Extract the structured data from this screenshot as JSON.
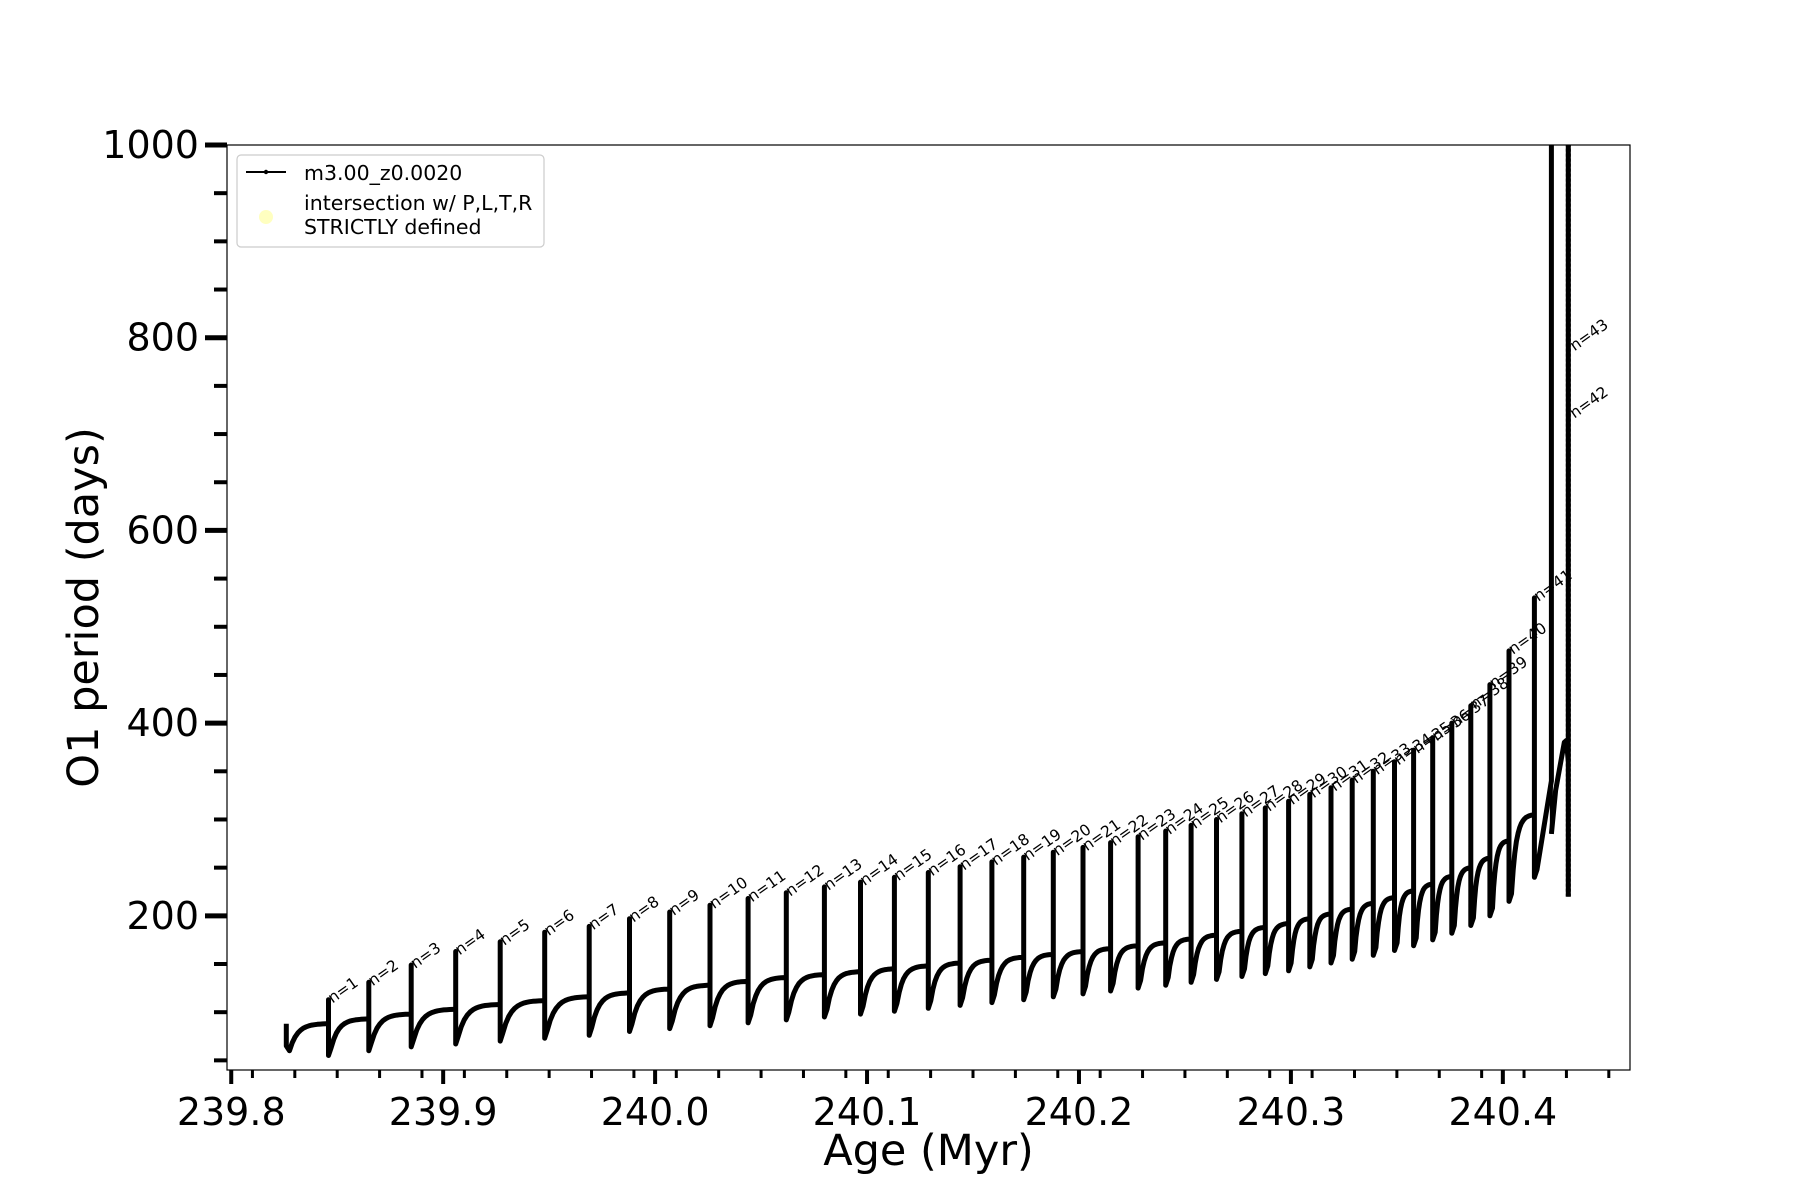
{
  "chart_data": {
    "type": "line",
    "title": "",
    "xlabel": "Age (Myr)",
    "ylabel": "O1 period (days)",
    "xlim": [
      239.798,
      240.46
    ],
    "ylim": [
      40,
      1000
    ],
    "xticks": [
      239.8,
      239.9,
      240.0,
      240.1,
      240.2,
      240.3,
      240.4
    ],
    "xtick_labels": [
      "239.8",
      "239.9",
      "240.0",
      "240.1",
      "240.2",
      "240.3",
      "240.4"
    ],
    "yticks": [
      200,
      400,
      600,
      800,
      1000
    ],
    "ytick_labels": [
      "200",
      "400",
      "600",
      "800",
      "1000"
    ],
    "grid": false,
    "legend_position": "top-left",
    "legend": [
      {
        "label": "m3.00_z0.0020",
        "marker": "line-with-dots",
        "color": "#000000"
      },
      {
        "label": "intersection w/ P,L,T,R\nSTRICTLY defined",
        "marker": "circle",
        "color": "#ffffc0"
      }
    ],
    "series": [
      {
        "name": "m3.00_z0.0020",
        "color": "#000000",
        "start": {
          "x": 239.826,
          "y_base": 65,
          "y_spike": 88
        },
        "pulses": [
          {
            "n": 1,
            "x": 239.8459,
            "y_peak": 113,
            "y_dip": 55,
            "y_pre": 88
          },
          {
            "n": 2,
            "x": 239.8649,
            "y_peak": 131,
            "y_dip": 60,
            "y_pre": 93
          },
          {
            "n": 3,
            "x": 239.8849,
            "y_peak": 149,
            "y_dip": 64,
            "y_pre": 98
          },
          {
            "n": 4,
            "x": 239.9059,
            "y_peak": 163,
            "y_dip": 67,
            "y_pre": 103
          },
          {
            "n": 5,
            "x": 239.9269,
            "y_peak": 173,
            "y_dip": 70,
            "y_pre": 108
          },
          {
            "n": 6,
            "x": 239.9479,
            "y_peak": 183,
            "y_dip": 73,
            "y_pre": 112
          },
          {
            "n": 7,
            "x": 239.9689,
            "y_peak": 189,
            "y_dip": 76,
            "y_pre": 116
          },
          {
            "n": 8,
            "x": 239.9879,
            "y_peak": 197,
            "y_dip": 80,
            "y_pre": 120
          },
          {
            "n": 9,
            "x": 240.0069,
            "y_peak": 204,
            "y_dip": 83,
            "y_pre": 124
          },
          {
            "n": 10,
            "x": 240.0259,
            "y_peak": 211,
            "y_dip": 86,
            "y_pre": 128
          },
          {
            "n": 11,
            "x": 240.0439,
            "y_peak": 218,
            "y_dip": 89,
            "y_pre": 132
          },
          {
            "n": 12,
            "x": 240.0619,
            "y_peak": 224,
            "y_dip": 92,
            "y_pre": 136
          },
          {
            "n": 13,
            "x": 240.0799,
            "y_peak": 230,
            "y_dip": 95,
            "y_pre": 139
          },
          {
            "n": 14,
            "x": 240.0969,
            "y_peak": 235,
            "y_dip": 98,
            "y_pre": 142
          },
          {
            "n": 15,
            "x": 240.1129,
            "y_peak": 240,
            "y_dip": 101,
            "y_pre": 145
          },
          {
            "n": 16,
            "x": 240.1289,
            "y_peak": 245,
            "y_dip": 104,
            "y_pre": 148
          },
          {
            "n": 17,
            "x": 240.1439,
            "y_peak": 251,
            "y_dip": 107,
            "y_pre": 151
          },
          {
            "n": 18,
            "x": 240.1589,
            "y_peak": 256,
            "y_dip": 110,
            "y_pre": 154
          },
          {
            "n": 19,
            "x": 240.1739,
            "y_peak": 261,
            "y_dip": 113,
            "y_pre": 157
          },
          {
            "n": 20,
            "x": 240.1879,
            "y_peak": 266,
            "y_dip": 116,
            "y_pre": 160
          },
          {
            "n": 21,
            "x": 240.2019,
            "y_peak": 271,
            "y_dip": 119,
            "y_pre": 163
          },
          {
            "n": 22,
            "x": 240.2149,
            "y_peak": 276,
            "y_dip": 122,
            "y_pre": 166
          },
          {
            "n": 23,
            "x": 240.2279,
            "y_peak": 282,
            "y_dip": 125,
            "y_pre": 169
          },
          {
            "n": 24,
            "x": 240.2409,
            "y_peak": 288,
            "y_dip": 128,
            "y_pre": 172
          },
          {
            "n": 25,
            "x": 240.2529,
            "y_peak": 294,
            "y_dip": 131,
            "y_pre": 176
          },
          {
            "n": 26,
            "x": 240.2649,
            "y_peak": 300,
            "y_dip": 134,
            "y_pre": 180
          },
          {
            "n": 27,
            "x": 240.2769,
            "y_peak": 306,
            "y_dip": 137,
            "y_pre": 184
          },
          {
            "n": 28,
            "x": 240.2879,
            "y_peak": 312,
            "y_dip": 140,
            "y_pre": 188
          },
          {
            "n": 29,
            "x": 240.2989,
            "y_peak": 319,
            "y_dip": 143,
            "y_pre": 192
          },
          {
            "n": 30,
            "x": 240.3089,
            "y_peak": 326,
            "y_dip": 147,
            "y_pre": 197
          },
          {
            "n": 31,
            "x": 240.3189,
            "y_peak": 333,
            "y_dip": 151,
            "y_pre": 202
          },
          {
            "n": 32,
            "x": 240.3289,
            "y_peak": 341,
            "y_dip": 155,
            "y_pre": 207
          },
          {
            "n": 33,
            "x": 240.3389,
            "y_peak": 350,
            "y_dip": 159,
            "y_pre": 213
          },
          {
            "n": 34,
            "x": 240.3489,
            "y_peak": 360,
            "y_dip": 164,
            "y_pre": 219
          },
          {
            "n": 35,
            "x": 240.3579,
            "y_peak": 372,
            "y_dip": 169,
            "y_pre": 226
          },
          {
            "n": 36,
            "x": 240.3669,
            "y_peak": 385,
            "y_dip": 175,
            "y_pre": 233
          },
          {
            "n": 37,
            "x": 240.3759,
            "y_peak": 400,
            "y_dip": 182,
            "y_pre": 241
          },
          {
            "n": 38,
            "x": 240.3849,
            "y_peak": 418,
            "y_dip": 190,
            "y_pre": 250
          },
          {
            "n": 39,
            "x": 240.3939,
            "y_peak": 440,
            "y_dip": 200,
            "y_pre": 260
          },
          {
            "n": 40,
            "x": 240.4029,
            "y_peak": 475,
            "y_dip": 215,
            "y_pre": 278
          },
          {
            "n": 41,
            "x": 240.4149,
            "y_peak": 530,
            "y_dip": 240,
            "y_pre": 305
          },
          {
            "n": 42,
            "x": 240.4309,
            "y_peak": 1000,
            "y_dip": 220,
            "y_pre": 380
          },
          {
            "n": 43,
            "x": 240.4319,
            "y_peak": 1000,
            "y_dip": 230,
            "y_pre": 300
          }
        ],
        "vertical_segments": [
          {
            "x": 240.4229,
            "y_bottom": 285,
            "y_top": 1000
          },
          {
            "x": 240.4309,
            "y_bottom": 220,
            "y_top": 1000
          }
        ]
      }
    ],
    "annotations": [
      {
        "text": "n=1",
        "x": 239.8459,
        "y": 113
      },
      {
        "text": "n=2",
        "x": 239.8649,
        "y": 131
      },
      {
        "text": "n=3",
        "x": 239.8849,
        "y": 149
      },
      {
        "text": "n=4",
        "x": 239.9059,
        "y": 163
      },
      {
        "text": "n=5",
        "x": 239.9269,
        "y": 173
      },
      {
        "text": "n=6",
        "x": 239.9479,
        "y": 183
      },
      {
        "text": "n=7",
        "x": 239.9689,
        "y": 189
      },
      {
        "text": "n=8",
        "x": 239.9879,
        "y": 197
      },
      {
        "text": "n=9",
        "x": 240.0069,
        "y": 204
      },
      {
        "text": "n=10",
        "x": 240.0259,
        "y": 211
      },
      {
        "text": "n=11",
        "x": 240.0439,
        "y": 218
      },
      {
        "text": "n=12",
        "x": 240.0619,
        "y": 224
      },
      {
        "text": "n=13",
        "x": 240.0799,
        "y": 230
      },
      {
        "text": "n=14",
        "x": 240.0969,
        "y": 235
      },
      {
        "text": "n=15",
        "x": 240.1129,
        "y": 240
      },
      {
        "text": "n=16",
        "x": 240.1289,
        "y": 245
      },
      {
        "text": "n=17",
        "x": 240.1439,
        "y": 251
      },
      {
        "text": "n=18",
        "x": 240.1589,
        "y": 256
      },
      {
        "text": "n=19",
        "x": 240.1739,
        "y": 261
      },
      {
        "text": "n=20",
        "x": 240.1879,
        "y": 266
      },
      {
        "text": "n=21",
        "x": 240.2019,
        "y": 271
      },
      {
        "text": "n=22",
        "x": 240.2149,
        "y": 276
      },
      {
        "text": "n=23",
        "x": 240.2279,
        "y": 282
      },
      {
        "text": "n=24",
        "x": 240.2409,
        "y": 288
      },
      {
        "text": "n=25",
        "x": 240.2529,
        "y": 294
      },
      {
        "text": "n=26",
        "x": 240.2649,
        "y": 300
      },
      {
        "text": "n=27",
        "x": 240.2769,
        "y": 306
      },
      {
        "text": "n=28",
        "x": 240.2879,
        "y": 312
      },
      {
        "text": "n=29",
        "x": 240.2989,
        "y": 319
      },
      {
        "text": "n=30",
        "x": 240.3089,
        "y": 326
      },
      {
        "text": "n=31",
        "x": 240.3189,
        "y": 333
      },
      {
        "text": "n=32",
        "x": 240.3289,
        "y": 341
      },
      {
        "text": "n=33",
        "x": 240.3389,
        "y": 350
      },
      {
        "text": "n=34",
        "x": 240.3489,
        "y": 360
      },
      {
        "text": "n=35",
        "x": 240.3579,
        "y": 372
      },
      {
        "text": "n=36",
        "x": 240.3669,
        "y": 385
      },
      {
        "text": "n=37",
        "x": 240.3759,
        "y": 400
      },
      {
        "text": "n=38",
        "x": 240.3849,
        "y": 418
      },
      {
        "text": "n=39",
        "x": 240.3939,
        "y": 440
      },
      {
        "text": "n=40",
        "x": 240.4029,
        "y": 475
      },
      {
        "text": "n=41",
        "x": 240.4149,
        "y": 530
      },
      {
        "text": "n=42",
        "x": 240.4319,
        "y": 720
      },
      {
        "text": "n=43",
        "x": 240.4319,
        "y": 790
      }
    ]
  }
}
